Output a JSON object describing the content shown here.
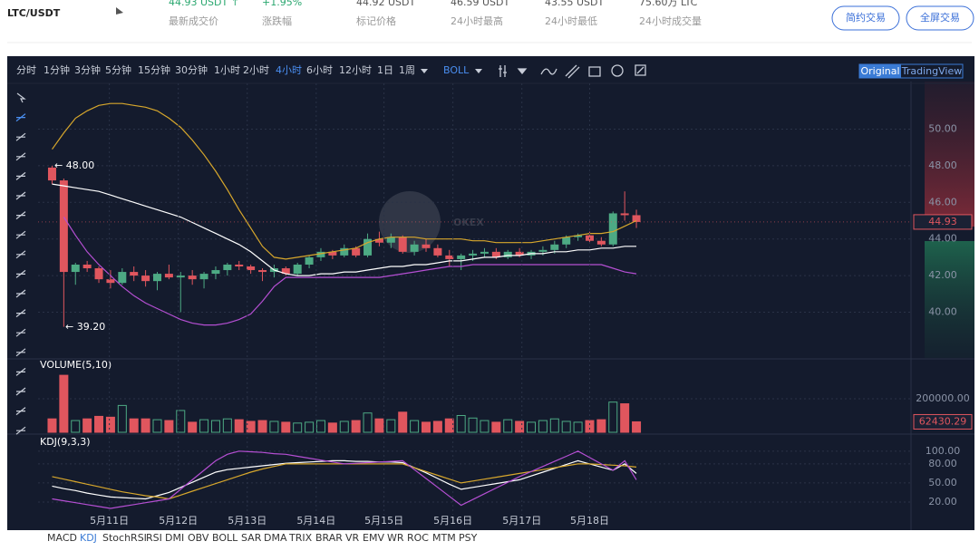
{
  "header": {
    "title": "LTC/USDT",
    "stats": [
      {
        "value": "44.93 USDT ↑",
        "label": "最新成交价"
      },
      {
        "value": "+1.95%",
        "label": "涨跌幅"
      },
      {
        "value": "44.92 USDT",
        "label": "标记价格"
      },
      {
        "value": "46.59 USDT",
        "label": "24小时最高"
      },
      {
        "value": "43.55 USDT",
        "label": "24小时最低"
      },
      {
        "value": "75.60万 LTC",
        "label": "24小时成交量"
      }
    ],
    "buttons": [
      "简约交易",
      "全屏交易"
    ]
  },
  "toolbar": {
    "intervals": [
      "分时",
      "1分钟",
      "3分钟",
      "5分钟",
      "15分钟",
      "30分钟",
      "1小时",
      "2小时",
      "4小时",
      "6小时",
      "12小时",
      "1日",
      "1周"
    ],
    "active": "4小时",
    "indicator": "BOLL",
    "views": [
      "Original",
      "TradingView"
    ]
  },
  "watermark": "OKEX",
  "indicator_tabs": [
    "MACD",
    "KDJ",
    "StochRSI",
    "RSI",
    "DMI",
    "OBV",
    "BOLL",
    "SAR",
    "DMA",
    "TRIX",
    "BRAR",
    "VR",
    "EMV",
    "WR",
    "ROC",
    "MTM",
    "PSY"
  ],
  "active_tab": "KDJ",
  "chart_data": [
    {
      "type": "candlestick",
      "xlim": [
        -1.2,
        73.5
      ],
      "ylim": [
        37.5,
        52.6
      ],
      "yticks": [
        {
          "value": 40,
          "label": "40.00"
        },
        {
          "value": 42,
          "label": "42.00"
        },
        {
          "value": 44,
          "label": "44.00"
        },
        {
          "value": 46,
          "label": "46.00"
        },
        {
          "value": 48,
          "label": "48.00"
        },
        {
          "value": 50,
          "label": "50.00"
        }
      ],
      "grid": true,
      "up_color": "#4daa84",
      "down_color": "#e0565e",
      "open": [
        47.9,
        47.2,
        42.2,
        42.6,
        42.4,
        41.8,
        41.6,
        42.2,
        42.0,
        41.7,
        42.1,
        41.9,
        42.0,
        41.8,
        42.1,
        42.3,
        42.6,
        42.5,
        42.3,
        42.2,
        42.4,
        42.1,
        42.6,
        43.0,
        43.3,
        43.1,
        43.5,
        43.1,
        44.0,
        43.8,
        44.1,
        43.3,
        43.7,
        43.5,
        43.1,
        42.9,
        43.1,
        43.2,
        43.3,
        43.0,
        43.3,
        43.1,
        43.3,
        43.4,
        43.7,
        44.1,
        44.2,
        43.9,
        43.7,
        45.4,
        45.3
      ],
      "high": [
        48.0,
        47.3,
        42.7,
        42.8,
        42.5,
        42.3,
        42.4,
        42.5,
        42.3,
        42.2,
        42.6,
        42.2,
        42.3,
        42.2,
        42.5,
        42.7,
        42.8,
        42.6,
        42.4,
        42.6,
        42.5,
        42.7,
        43.1,
        43.5,
        43.4,
        43.7,
        43.6,
        44.3,
        44.4,
        44.3,
        44.2,
        43.9,
        44.0,
        43.7,
        43.4,
        43.2,
        43.4,
        43.5,
        43.5,
        43.4,
        43.5,
        43.4,
        43.6,
        43.9,
        44.2,
        44.3,
        44.4,
        44.1,
        45.5,
        46.6,
        45.6
      ],
      "low": [
        47.0,
        39.2,
        41.5,
        42.2,
        41.6,
        41.3,
        41.5,
        41.7,
        41.4,
        41.2,
        41.8,
        40.0,
        41.5,
        41.3,
        41.8,
        42.0,
        42.3,
        42.1,
        41.7,
        41.9,
        42.0,
        42.0,
        42.4,
        42.8,
        42.9,
        43.0,
        43.0,
        43.0,
        43.6,
        43.5,
        43.2,
        43.1,
        43.3,
        43.0,
        42.5,
        42.3,
        42.8,
        43.0,
        42.9,
        42.9,
        43.0,
        42.9,
        43.1,
        43.2,
        43.5,
        43.9,
        43.8,
        43.6,
        43.6,
        45.0,
        44.6
      ],
      "close": [
        47.2,
        42.2,
        42.6,
        42.4,
        41.8,
        41.6,
        42.2,
        42.0,
        41.7,
        42.1,
        41.9,
        42.0,
        41.8,
        42.1,
        42.3,
        42.6,
        42.5,
        42.3,
        42.2,
        42.4,
        42.1,
        42.6,
        43.0,
        43.3,
        43.1,
        43.5,
        43.1,
        44.0,
        43.8,
        44.1,
        43.3,
        43.7,
        43.5,
        43.1,
        42.9,
        43.1,
        43.2,
        43.3,
        43.0,
        43.3,
        43.1,
        43.3,
        43.4,
        43.7,
        44.1,
        44.2,
        43.9,
        43.7,
        45.4,
        45.3,
        44.93
      ],
      "lines": [
        {
          "color": "#d7a72c",
          "values": [
            48.9,
            49.8,
            50.6,
            51.0,
            51.3,
            51.4,
            51.4,
            51.3,
            51.2,
            51.0,
            50.6,
            50.1,
            49.4,
            48.6,
            47.7,
            46.7,
            45.6,
            44.6,
            43.6,
            43.0,
            42.9,
            43.0,
            43.1,
            43.2,
            43.3,
            43.4,
            43.5,
            43.8,
            44.0,
            44.1,
            44.1,
            44.1,
            44.0,
            44.0,
            44.0,
            44.0,
            43.9,
            43.9,
            43.8,
            43.8,
            43.8,
            43.8,
            43.9,
            44.0,
            44.1,
            44.2,
            44.3,
            44.3,
            44.4,
            44.7,
            45.0
          ]
        },
        {
          "color": "#ffffff",
          "values": [
            47.0,
            46.9,
            46.8,
            46.7,
            46.6,
            46.4,
            46.2,
            46.0,
            45.8,
            45.6,
            45.4,
            45.2,
            44.9,
            44.6,
            44.3,
            44.0,
            43.7,
            43.3,
            42.8,
            42.3,
            42.1,
            42.0,
            42.0,
            42.1,
            42.1,
            42.2,
            42.2,
            42.3,
            42.4,
            42.5,
            42.5,
            42.6,
            42.6,
            42.7,
            42.8,
            42.8,
            42.9,
            43.0,
            43.0,
            43.1,
            43.1,
            43.2,
            43.2,
            43.3,
            43.3,
            43.4,
            43.4,
            43.5,
            43.5,
            43.6,
            43.6
          ]
        },
        {
          "color": "#b54fd3",
          "values": [
            null,
            45.2,
            44.2,
            43.3,
            42.6,
            42.0,
            41.4,
            40.9,
            40.5,
            40.2,
            39.9,
            39.6,
            39.4,
            39.3,
            39.3,
            39.4,
            39.6,
            39.9,
            40.6,
            41.4,
            41.9,
            41.9,
            41.9,
            41.9,
            41.9,
            41.9,
            41.9,
            41.9,
            41.9,
            42.0,
            42.1,
            42.2,
            42.3,
            42.4,
            42.5,
            42.5,
            42.6,
            42.6,
            42.6,
            42.6,
            42.6,
            42.6,
            42.6,
            42.6,
            42.6,
            42.6,
            42.6,
            42.6,
            42.4,
            42.2,
            42.1
          ]
        }
      ],
      "annotations": [
        "← 48.00",
        "← 39.20"
      ]
    },
    {
      "type": "bar",
      "title": "VOLUME(5,10)",
      "xlim": [
        -1.2,
        73.5
      ],
      "ylim": [
        0,
        427000
      ],
      "yticks": [
        {
          "value": 200000,
          "label": "200000.00"
        }
      ],
      "values": [
        80000,
        340000,
        70000,
        80000,
        95000,
        90000,
        160000,
        80000,
        80000,
        75000,
        70000,
        130000,
        60000,
        75000,
        70000,
        80000,
        75000,
        65000,
        70000,
        65000,
        60000,
        55000,
        60000,
        70000,
        55000,
        65000,
        70000,
        115000,
        80000,
        75000,
        120000,
        70000,
        60000,
        65000,
        80000,
        100000,
        85000,
        70000,
        60000,
        75000,
        65000,
        60000,
        70000,
        80000,
        65000,
        60000,
        70000,
        75000,
        180000,
        170000,
        62430.29
      ]
    },
    {
      "type": "line",
      "title": "KDJ(9,3,3)",
      "xlim": [
        -1.2,
        73.5
      ],
      "ylim": [
        0,
        124
      ],
      "yticks": [
        {
          "value": 20,
          "label": "20.00"
        },
        {
          "value": 50,
          "label": "50.00"
        },
        {
          "value": 80,
          "label": "80.00"
        },
        {
          "value": 100,
          "label": "100.00"
        }
      ],
      "xticks": [
        {
          "value": 4.9,
          "label": "5月11日"
        },
        {
          "value": 10.8,
          "label": "5月12日"
        },
        {
          "value": 16.7,
          "label": "5月13日"
        },
        {
          "value": 22.6,
          "label": "5月14日"
        },
        {
          "value": 28.4,
          "label": "5月15日"
        },
        {
          "value": 34.3,
          "label": "5月16日"
        },
        {
          "value": 40.2,
          "label": "5月17日"
        },
        {
          "value": 46.0,
          "label": "5月18日"
        }
      ],
      "series": [
        {
          "color": "#ffffff",
          "values": [
            45,
            41,
            38,
            34,
            31,
            28,
            27,
            26,
            25,
            30,
            35,
            43,
            51,
            59,
            67,
            71,
            73,
            75,
            77,
            79,
            81,
            82,
            83,
            84,
            85,
            85,
            84,
            84,
            83,
            83,
            82,
            74,
            66,
            57,
            48,
            40,
            43,
            46,
            49,
            52,
            55,
            61,
            67,
            73,
            79,
            85,
            80,
            75,
            70,
            80,
            65
          ]
        },
        {
          "color": "#d7a72c",
          "values": [
            60,
            56,
            52,
            48,
            44,
            40,
            36,
            33,
            30,
            28,
            25,
            31,
            37,
            43,
            49,
            55,
            61,
            67,
            72,
            76,
            80,
            80,
            80,
            80,
            80,
            80,
            80,
            80,
            80,
            80,
            80,
            74,
            68,
            62,
            56,
            50,
            53,
            56,
            59,
            62,
            65,
            68,
            71,
            74,
            77,
            80,
            80,
            79,
            78,
            77,
            75
          ]
        },
        {
          "color": "#b54fd3",
          "values": [
            25,
            22,
            19,
            16,
            13,
            10,
            13,
            16,
            19,
            22,
            25,
            40,
            55,
            70,
            85,
            95,
            100,
            99,
            98,
            96,
            95,
            92,
            89,
            86,
            83,
            80,
            81,
            82,
            83,
            84,
            85,
            71,
            57,
            43,
            29,
            15,
            24,
            33,
            42,
            51,
            60,
            68,
            76,
            84,
            92,
            100,
            90,
            80,
            70,
            85,
            55
          ]
        }
      ]
    }
  ]
}
